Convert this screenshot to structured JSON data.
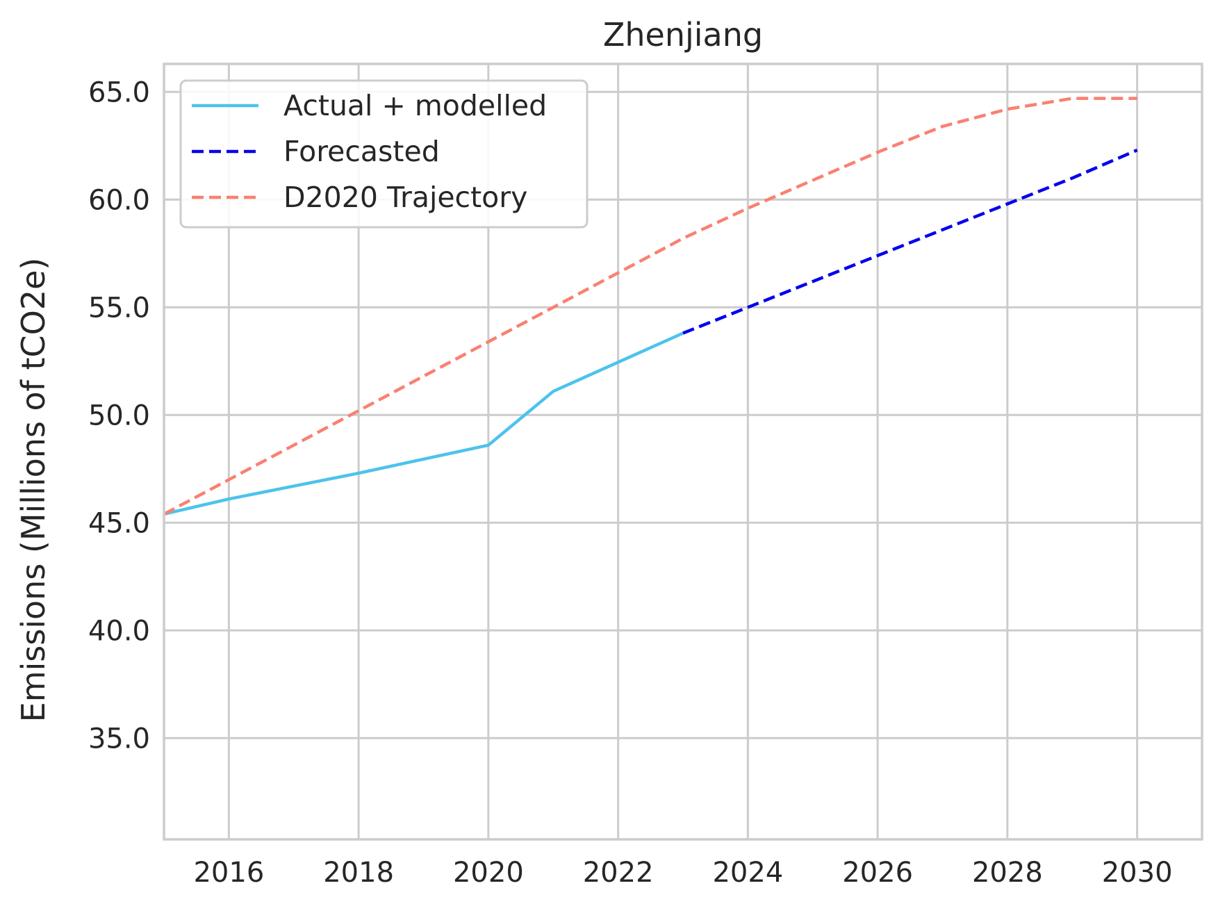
{
  "chart_data": {
    "type": "line",
    "title": "Zhenjiang",
    "xlabel": "",
    "ylabel": "Emissions (Millions of tCO2e)",
    "xlim": [
      2015,
      2031
    ],
    "ylim": [
      30.3,
      66.3
    ],
    "xticks": [
      2016,
      2018,
      2020,
      2022,
      2024,
      2026,
      2028,
      2030
    ],
    "xtick_labels": [
      "2016",
      "2018",
      "2020",
      "2022",
      "2024",
      "2026",
      "2028",
      "2030"
    ],
    "yticks": [
      35,
      40,
      45,
      50,
      55,
      60,
      65
    ],
    "ytick_labels": [
      "35.0",
      "40.0",
      "45.0",
      "50.0",
      "55.0",
      "60.0",
      "65.0"
    ],
    "grid": true,
    "legend_position": "top-left",
    "series": [
      {
        "name": "Actual + modelled",
        "style": "solid",
        "color": "#4cc3ec",
        "x": [
          2015,
          2016,
          2017,
          2018,
          2019,
          2020,
          2021,
          2022,
          2023
        ],
        "y": [
          45.4,
          46.1,
          46.7,
          47.3,
          47.95,
          48.6,
          51.1,
          52.45,
          53.8
        ]
      },
      {
        "name": "Forecasted",
        "style": "dashed",
        "color": "#0000ee",
        "x": [
          2023,
          2024,
          2025,
          2026,
          2027,
          2028,
          2029,
          2030
        ],
        "y": [
          53.8,
          55.0,
          56.2,
          57.4,
          58.6,
          59.8,
          61.0,
          62.3
        ]
      },
      {
        "name": "D2020 Trajectory",
        "style": "dashed",
        "color": "#fa8072",
        "x": [
          2015,
          2016,
          2017,
          2018,
          2019,
          2020,
          2021,
          2022,
          2023,
          2024,
          2025,
          2026,
          2027,
          2028,
          2029,
          2030
        ],
        "y": [
          45.4,
          47.0,
          48.6,
          50.2,
          51.8,
          53.4,
          55.0,
          56.6,
          58.2,
          59.6,
          60.9,
          62.2,
          63.4,
          64.2,
          64.7,
          64.7
        ]
      }
    ]
  }
}
